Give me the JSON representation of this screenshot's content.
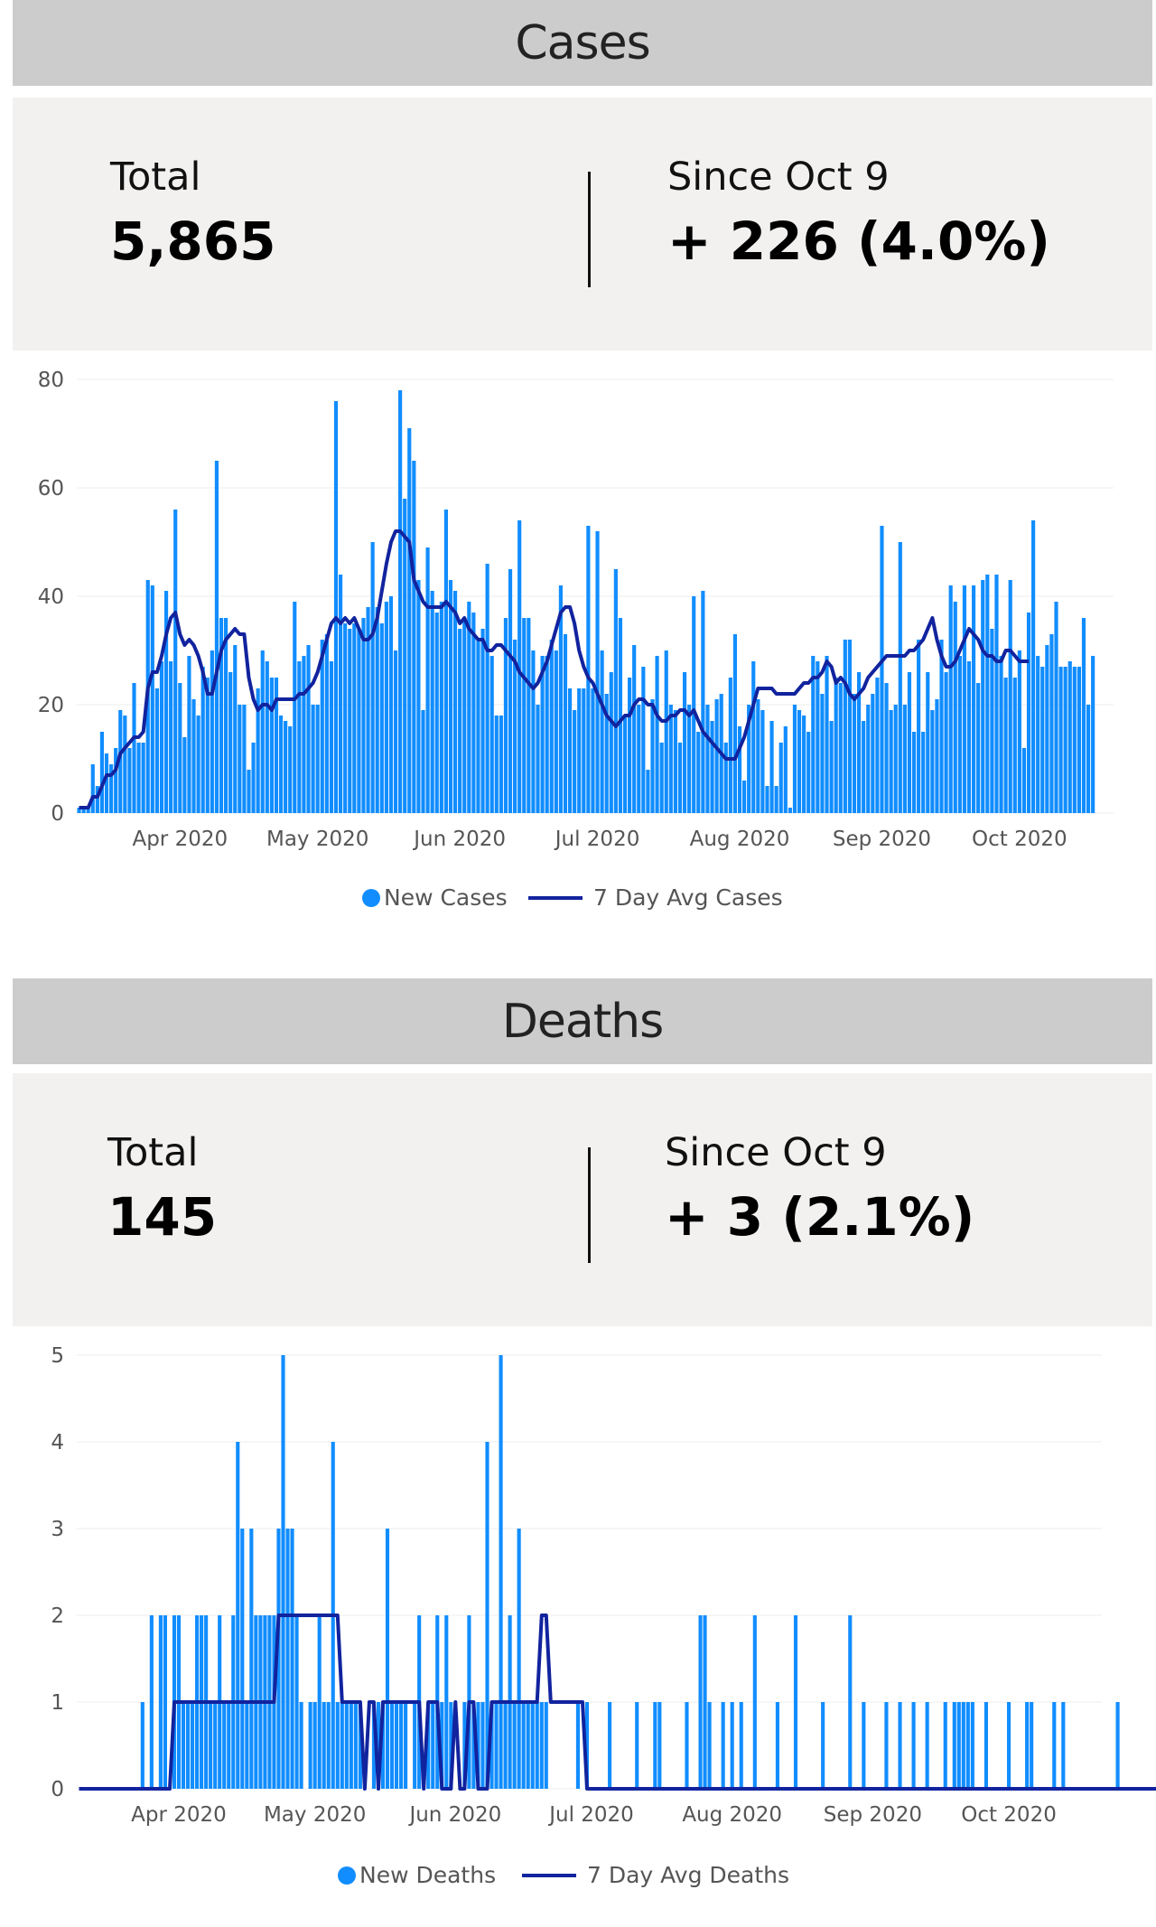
{
  "cases": {
    "title": "Cases",
    "total_label": "Total",
    "total_value": "5,865",
    "since_label": "Since Oct 9",
    "since_value": "+ 226 (4.0%)"
  },
  "deaths": {
    "title": "Deaths",
    "total_label": "Total",
    "total_value": "145",
    "since_label": "Since Oct 9",
    "since_value": "+ 3 (2.1%)"
  },
  "chart_data": [
    {
      "type": "bar",
      "title": "",
      "x_start": "2020-03-10",
      "x_end": "2020-10-21",
      "x_ticks": [
        "Apr 2020",
        "May 2020",
        "Jun 2020",
        "Jul 2020",
        "Aug 2020",
        "Sep 2020",
        "Oct 2020"
      ],
      "ylim": [
        0,
        80
      ],
      "y_ticks": [
        0,
        20,
        40,
        60,
        80
      ],
      "grid": true,
      "legend": "bottom-center",
      "colors": {
        "bars": "#118dff",
        "line": "#12239e"
      },
      "series": [
        {
          "name": "New Cases",
          "type": "bar",
          "values": [
            1,
            1,
            1,
            9,
            5,
            15,
            11,
            9,
            12,
            19,
            18,
            12,
            24,
            13,
            13,
            43,
            42,
            23,
            28,
            41,
            28,
            56,
            24,
            14,
            29,
            21,
            18,
            27,
            25,
            30,
            65,
            36,
            36,
            26,
            31,
            20,
            20,
            8,
            13,
            23,
            30,
            28,
            25,
            25,
            18,
            17,
            16,
            39,
            28,
            29,
            31,
            20,
            20,
            32,
            33,
            28,
            76,
            44,
            35,
            34,
            35,
            34,
            36,
            38,
            50,
            38,
            35,
            39,
            40,
            30,
            78,
            58,
            71,
            65,
            43,
            19,
            49,
            41,
            37,
            39,
            56,
            43,
            41,
            34,
            36,
            39,
            37,
            32,
            34,
            46,
            29,
            18,
            18,
            36,
            45,
            32,
            54,
            36,
            36,
            30,
            20,
            29,
            29,
            32,
            30,
            42,
            33,
            23,
            19,
            23,
            23,
            53,
            23,
            52,
            30,
            22,
            26,
            45,
            36,
            18,
            25,
            31,
            20,
            27,
            8,
            21,
            29,
            13,
            30,
            20,
            19,
            13,
            26,
            20,
            40,
            15,
            41,
            20,
            17,
            21,
            22,
            13,
            25,
            33,
            16,
            6,
            20,
            28,
            21,
            19,
            5,
            17,
            5,
            13,
            16,
            1,
            20,
            19,
            18,
            15,
            29,
            28,
            22,
            29,
            17,
            25,
            24,
            32,
            32,
            22,
            26,
            17,
            20,
            22,
            25,
            53,
            24,
            19,
            20,
            50,
            20,
            26,
            15,
            32,
            15,
            26,
            19,
            21,
            32,
            26,
            42,
            39,
            29,
            42,
            28,
            42,
            24,
            43,
            44,
            34,
            44,
            29,
            25,
            43,
            25,
            30,
            12,
            37,
            54,
            29,
            27,
            31,
            33,
            39,
            27,
            27,
            28,
            27,
            27,
            36,
            20,
            29
          ]
        },
        {
          "name": "7 Day Avg Cases",
          "type": "line",
          "values": [
            1,
            1,
            1,
            3,
            3,
            5,
            7,
            7,
            8,
            11,
            12,
            13,
            14,
            14,
            15,
            23,
            26,
            26,
            29,
            33,
            36,
            37,
            33,
            31,
            32,
            31,
            29,
            26,
            22,
            22,
            26,
            30,
            32,
            33,
            34,
            33,
            33,
            25,
            21,
            19,
            20,
            20,
            19,
            21,
            21,
            21,
            21,
            21,
            22,
            22,
            23,
            24,
            26,
            29,
            32,
            35,
            36,
            35,
            36,
            35,
            36,
            34,
            32,
            32,
            33,
            36,
            41,
            46,
            50,
            52,
            52,
            51,
            50,
            43,
            41,
            39,
            38,
            38,
            38,
            38,
            39,
            38,
            37,
            35,
            36,
            34,
            33,
            32,
            32,
            30,
            30,
            31,
            31,
            30,
            29,
            28,
            26,
            25,
            24,
            23,
            24,
            26,
            28,
            31,
            34,
            37,
            38,
            38,
            35,
            30,
            27,
            25,
            24,
            22,
            20,
            18,
            17,
            16,
            17,
            18,
            18,
            20,
            21,
            21,
            20,
            20,
            18,
            17,
            17,
            18,
            18,
            19,
            19,
            18,
            19,
            17,
            15,
            14,
            13,
            12,
            11,
            10,
            10,
            10,
            12,
            14,
            17,
            20,
            23,
            23,
            23,
            23,
            22,
            22,
            22,
            22,
            22,
            23,
            24,
            24,
            25,
            25,
            26,
            28,
            27,
            24,
            25,
            24,
            22,
            21,
            22,
            23,
            25,
            26,
            27,
            28,
            29,
            29,
            29,
            29,
            29,
            30,
            30,
            31,
            32,
            34,
            36,
            32,
            29,
            27,
            27,
            28,
            30,
            32,
            34,
            33,
            32,
            30,
            29,
            29,
            28,
            28,
            30,
            30,
            29,
            28,
            28,
            28
          ]
        }
      ]
    },
    {
      "type": "bar",
      "title": "",
      "x_start": "2020-03-10",
      "x_end": "2020-10-21",
      "x_ticks": [
        "Apr 2020",
        "May 2020",
        "Jun 2020",
        "Jul 2020",
        "Aug 2020",
        "Sep 2020",
        "Oct 2020"
      ],
      "ylim": [
        0,
        5
      ],
      "y_ticks": [
        0,
        1,
        2,
        3,
        4,
        5
      ],
      "grid": true,
      "legend": "bottom-center",
      "colors": {
        "bars": "#118dff",
        "line": "#12239e"
      },
      "series": [
        {
          "name": "New Deaths",
          "type": "bar",
          "values": [
            0,
            0,
            0,
            0,
            0,
            0,
            0,
            0,
            0,
            0,
            0,
            0,
            0,
            0,
            1,
            0,
            2,
            0,
            2,
            2,
            0,
            2,
            2,
            1,
            1,
            1,
            2,
            2,
            2,
            1,
            1,
            2,
            1,
            1,
            2,
            4,
            3,
            1,
            3,
            2,
            2,
            2,
            2,
            2,
            3,
            5,
            3,
            3,
            2,
            1,
            0,
            1,
            1,
            2,
            1,
            1,
            4,
            1,
            1,
            1,
            1,
            1,
            1,
            0,
            0,
            1,
            1,
            1,
            3,
            1,
            1,
            1,
            1,
            0,
            1,
            2,
            0,
            1,
            1,
            2,
            1,
            2,
            1,
            0,
            0,
            1,
            2,
            1,
            1,
            1,
            4,
            1,
            1,
            5,
            1,
            2,
            1,
            3,
            1,
            1,
            1,
            1,
            1,
            1,
            0,
            0,
            0,
            0,
            0,
            0,
            1,
            0,
            1,
            0,
            0,
            0,
            0,
            1,
            0,
            0,
            0,
            0,
            0,
            1,
            0,
            0,
            0,
            1,
            1,
            0,
            0,
            0,
            0,
            0,
            1,
            0,
            0,
            2,
            2,
            1,
            0,
            0,
            1,
            0,
            1,
            0,
            1,
            0,
            0,
            2,
            0,
            0,
            0,
            0,
            1,
            0,
            0,
            0,
            2,
            0,
            0,
            0,
            0,
            0,
            1,
            0,
            0,
            0,
            0,
            0,
            2,
            0,
            0,
            1,
            0,
            0,
            0,
            0,
            1,
            0,
            0,
            1,
            0,
            0,
            1,
            0,
            0,
            1,
            0,
            0,
            0,
            1,
            0,
            1,
            1,
            1,
            1,
            1,
            0,
            0,
            1,
            0,
            0,
            0,
            0,
            1,
            0,
            0,
            0,
            1,
            1,
            0,
            0,
            0,
            0,
            1,
            0,
            1,
            0,
            0,
            0,
            0,
            0,
            0,
            0,
            0,
            0,
            0,
            0,
            1,
            0,
            0,
            0,
            0,
            0,
            0,
            0,
            0,
            1,
            0,
            0,
            0,
            0,
            0,
            1,
            1,
            1,
            0,
            0,
            1,
            0,
            1,
            1,
            0,
            0,
            0,
            1,
            1,
            0,
            0,
            0,
            0,
            0,
            0,
            0,
            0,
            1,
            0,
            0,
            0,
            0,
            0,
            0,
            0,
            0,
            1,
            1
          ]
        },
        {
          "name": "7 Day Avg Deaths",
          "type": "line",
          "values": [
            0,
            0,
            0,
            0,
            0,
            0,
            0,
            0,
            0,
            0,
            0,
            0,
            0,
            0,
            0,
            0,
            0,
            0,
            0,
            0,
            0,
            1,
            1,
            1,
            1,
            1,
            1,
            1,
            1,
            1,
            1,
            1,
            1,
            1,
            1,
            1,
            1,
            1,
            1,
            1,
            1,
            1,
            1,
            1,
            2,
            2,
            2,
            2,
            2,
            2,
            2,
            2,
            2,
            2,
            2,
            2,
            2,
            2,
            1,
            1,
            1,
            1,
            1,
            0,
            1,
            1,
            0,
            1,
            1,
            1,
            1,
            1,
            1,
            1,
            1,
            1,
            0,
            1,
            1,
            1,
            0,
            0,
            0,
            1,
            0,
            0,
            1,
            1,
            0,
            0,
            0,
            1,
            1,
            1,
            1,
            1,
            1,
            1,
            1,
            1,
            1,
            1,
            2,
            2,
            1,
            1,
            1,
            1,
            1,
            1,
            1,
            1,
            0,
            0,
            0,
            0,
            0,
            0,
            0,
            0,
            0,
            0,
            0,
            0,
            0,
            0,
            0,
            0,
            0,
            0,
            0,
            0,
            0,
            0,
            0,
            0,
            0,
            0,
            0,
            0,
            0,
            0,
            0,
            0,
            0,
            0,
            0,
            0,
            0,
            0,
            0,
            0,
            0,
            0,
            0,
            0,
            0,
            0,
            0,
            0,
            0,
            0,
            0,
            0,
            0,
            0,
            0,
            0,
            0,
            0,
            0,
            0,
            0,
            0,
            0,
            0,
            0,
            0,
            0,
            0,
            0,
            0,
            0,
            0,
            0,
            0,
            0,
            0,
            0,
            0,
            0,
            0,
            0,
            0,
            0,
            0,
            0,
            0,
            0,
            0,
            0,
            0,
            0,
            0,
            0,
            0,
            0,
            0,
            0,
            0,
            0,
            0,
            0,
            0,
            0,
            0,
            0,
            0,
            0,
            0,
            0,
            0,
            0,
            0,
            0,
            0,
            0,
            0,
            0,
            0,
            0,
            0,
            0,
            0,
            0,
            0,
            0,
            0,
            0,
            0,
            0,
            0,
            0,
            0,
            0,
            0,
            0,
            0,
            0,
            0,
            0,
            0,
            0,
            0,
            0,
            0,
            0,
            0,
            0,
            0,
            0,
            0,
            0,
            0,
            0,
            0,
            0,
            0,
            0,
            0,
            0,
            0,
            0,
            0,
            0,
            0,
            0,
            0,
            0,
            0,
            0,
            0,
            0,
            0,
            0,
            0,
            0,
            0,
            0,
            0,
            0,
            0,
            0,
            0,
            0,
            0
          ]
        }
      ]
    }
  ]
}
